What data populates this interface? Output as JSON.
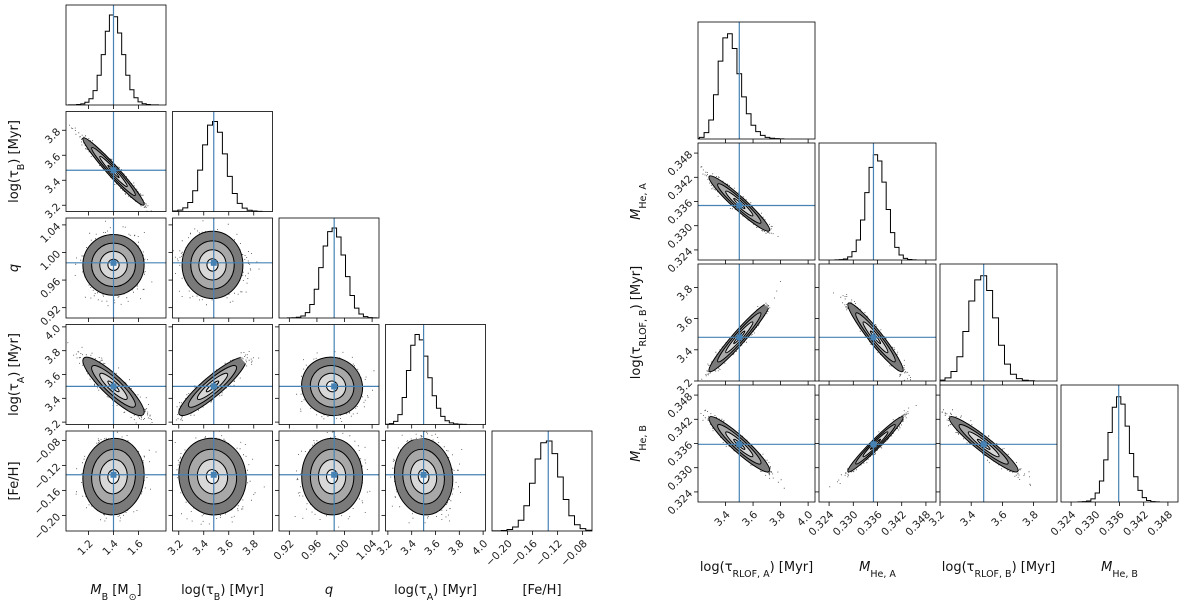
{
  "chart_data": [
    {
      "type": "corner",
      "parameters": [
        "M_B",
        "log_tau_B",
        "q",
        "log_tau_A",
        "FeH"
      ],
      "axis_labels": {
        "M_B": {
          "main": "M",
          "sub": "B",
          "suffix": " [M",
          "suffix_sub": "⊙",
          "suffix_end": "]"
        },
        "log_tau_B": {
          "main": "log(τ",
          "sub": "B",
          "suffix": ") [Myr]"
        },
        "q": {
          "main": "q",
          "italic": true
        },
        "log_tau_A": {
          "main": "log(τ",
          "sub": "A",
          "suffix": ") [Myr]"
        },
        "FeH": {
          "main": "[Fe/H]"
        }
      },
      "truths": {
        "M_B": 1.4,
        "log_tau_B": 3.48,
        "q": 0.985,
        "log_tau_A": 3.5,
        "FeH": -0.135
      },
      "ranges": {
        "M_B": [
          1.02,
          1.82
        ],
        "log_tau_B": [
          3.15,
          3.95
        ],
        "q": [
          0.905,
          1.05
        ],
        "log_tau_A": [
          3.18,
          4.02
        ],
        "FeH": [
          -0.225,
          -0.065
        ]
      },
      "ticks": {
        "M_B": [
          "1.2",
          "1.4",
          "1.6"
        ],
        "log_tau_B": [
          "3.2",
          "3.4",
          "3.6",
          "3.8"
        ],
        "q": [
          "0.92",
          "0.96",
          "1.00",
          "1.04"
        ],
        "log_tau_A": [
          "3.2",
          "3.4",
          "3.6",
          "3.8",
          "4.0"
        ],
        "FeH": [
          "−0.20",
          "−0.16",
          "−0.12",
          "−0.08"
        ]
      },
      "means": {
        "M_B": 1.4,
        "log_tau_B": 3.47,
        "q": 0.982,
        "log_tau_A": 3.5,
        "FeH": -0.138
      },
      "sigmas": {
        "M_B": 0.1,
        "log_tau_B": 0.11,
        "q": 0.018,
        "log_tau_A": 0.1,
        "FeH": 0.025
      },
      "correlations": {
        "log_tau_B|M_B": -0.97,
        "q|M_B": 0.0,
        "q|log_tau_B": 0.0,
        "log_tau_A|M_B": -0.88,
        "log_tau_A|log_tau_B": 0.9,
        "log_tau_A|q": -0.05,
        "FeH|M_B": 0.05,
        "FeH|log_tau_B": -0.05,
        "FeH|q": 0.0,
        "FeH|log_tau_A": -0.08
      },
      "histogram_counts": {
        "M_B": [
          1,
          2,
          5,
          12,
          30,
          70,
          160,
          330,
          560,
          820,
          1000,
          980,
          800,
          560,
          330,
          170,
          80,
          35,
          14,
          5,
          2,
          1
        ],
        "log_tau_B": [
          1,
          2,
          6,
          15,
          40,
          100,
          230,
          460,
          740,
          960,
          1000,
          880,
          640,
          390,
          200,
          90,
          38,
          14,
          5,
          2
        ],
        "q": [
          1,
          3,
          8,
          22,
          60,
          150,
          320,
          560,
          800,
          960,
          1000,
          900,
          700,
          460,
          250,
          110,
          45,
          15,
          4,
          1
        ],
        "log_tau_A": [
          1,
          3,
          10,
          35,
          110,
          300,
          600,
          880,
          1000,
          940,
          760,
          520,
          320,
          180,
          90,
          42,
          18,
          7,
          3,
          1
        ],
        "FeH": [
          1,
          2,
          6,
          16,
          45,
          120,
          280,
          530,
          800,
          980,
          1000,
          860,
          600,
          350,
          170,
          70,
          26,
          8,
          2,
          1
        ]
      }
    },
    {
      "type": "corner",
      "parameters": [
        "log_tau_RLOF_A",
        "M_He_A",
        "log_tau_RLOF_B",
        "M_He_B"
      ],
      "axis_labels": {
        "log_tau_RLOF_A": {
          "main": "log(τ",
          "sub": "RLOF, A",
          "suffix": ") [Myr]"
        },
        "M_He_A": {
          "main": "M",
          "sub": "He, A"
        },
        "log_tau_RLOF_B": {
          "main": "log(τ",
          "sub": "RLOF, B",
          "suffix": ") [Myr]"
        },
        "M_He_B": {
          "main": "M",
          "sub": "He, B"
        }
      },
      "truths": {
        "log_tau_RLOF_A": 3.5,
        "M_He_A": 0.335,
        "log_tau_RLOF_B": 3.48,
        "M_He_B": 0.3358
      },
      "ranges": {
        "log_tau_RLOF_A": [
          3.2,
          4.05
        ],
        "M_He_A": [
          0.3215,
          0.3505
        ],
        "log_tau_RLOF_B": [
          3.2,
          3.95
        ],
        "M_He_B": [
          0.3215,
          0.3505
        ]
      },
      "ticks": {
        "log_tau_RLOF_A": [
          "3.4",
          "3.6",
          "3.8",
          "4.0"
        ],
        "M_He_A": [
          "0.324",
          "0.330",
          "0.336",
          "0.342",
          "0.348"
        ],
        "log_tau_RLOF_B": [
          "3.2",
          "3.4",
          "3.6",
          "3.8"
        ],
        "M_He_B": [
          "0.324",
          "0.330",
          "0.336",
          "0.342",
          "0.348"
        ]
      },
      "means": {
        "log_tau_RLOF_A": 3.5,
        "M_He_A": 0.3355,
        "log_tau_RLOF_B": 3.48,
        "M_He_B": 0.3358
      },
      "sigmas": {
        "log_tau_RLOF_A": 0.09,
        "M_He_A": 0.0028,
        "log_tau_RLOF_B": 0.09,
        "M_He_B": 0.0028
      },
      "correlations": {
        "M_He_A|log_tau_RLOF_A": -0.95,
        "log_tau_RLOF_B|log_tau_RLOF_A": 0.96,
        "log_tau_RLOF_B|M_He_A": -0.95,
        "M_He_B|log_tau_RLOF_A": -0.93,
        "M_He_B|M_He_A": 0.97,
        "M_He_B|log_tau_RLOF_B": -0.94
      },
      "histogram_counts": {
        "log_tau_RLOF_A": [
          2,
          15,
          60,
          180,
          420,
          740,
          960,
          1000,
          860,
          620,
          400,
          240,
          130,
          70,
          35,
          16,
          7,
          3,
          1
        ],
        "M_He_A": [
          1,
          3,
          10,
          30,
          80,
          190,
          380,
          640,
          880,
          1000,
          940,
          740,
          480,
          260,
          120,
          48,
          16,
          5,
          1
        ],
        "log_tau_RLOF_B": [
          2,
          8,
          30,
          90,
          230,
          470,
          760,
          960,
          1000,
          860,
          600,
          340,
          160,
          64,
          22,
          7,
          2
        ],
        "M_He_B": [
          1,
          3,
          10,
          30,
          85,
          200,
          400,
          660,
          900,
          1000,
          930,
          720,
          460,
          240,
          110,
          42,
          14,
          4,
          1
        ]
      }
    }
  ]
}
